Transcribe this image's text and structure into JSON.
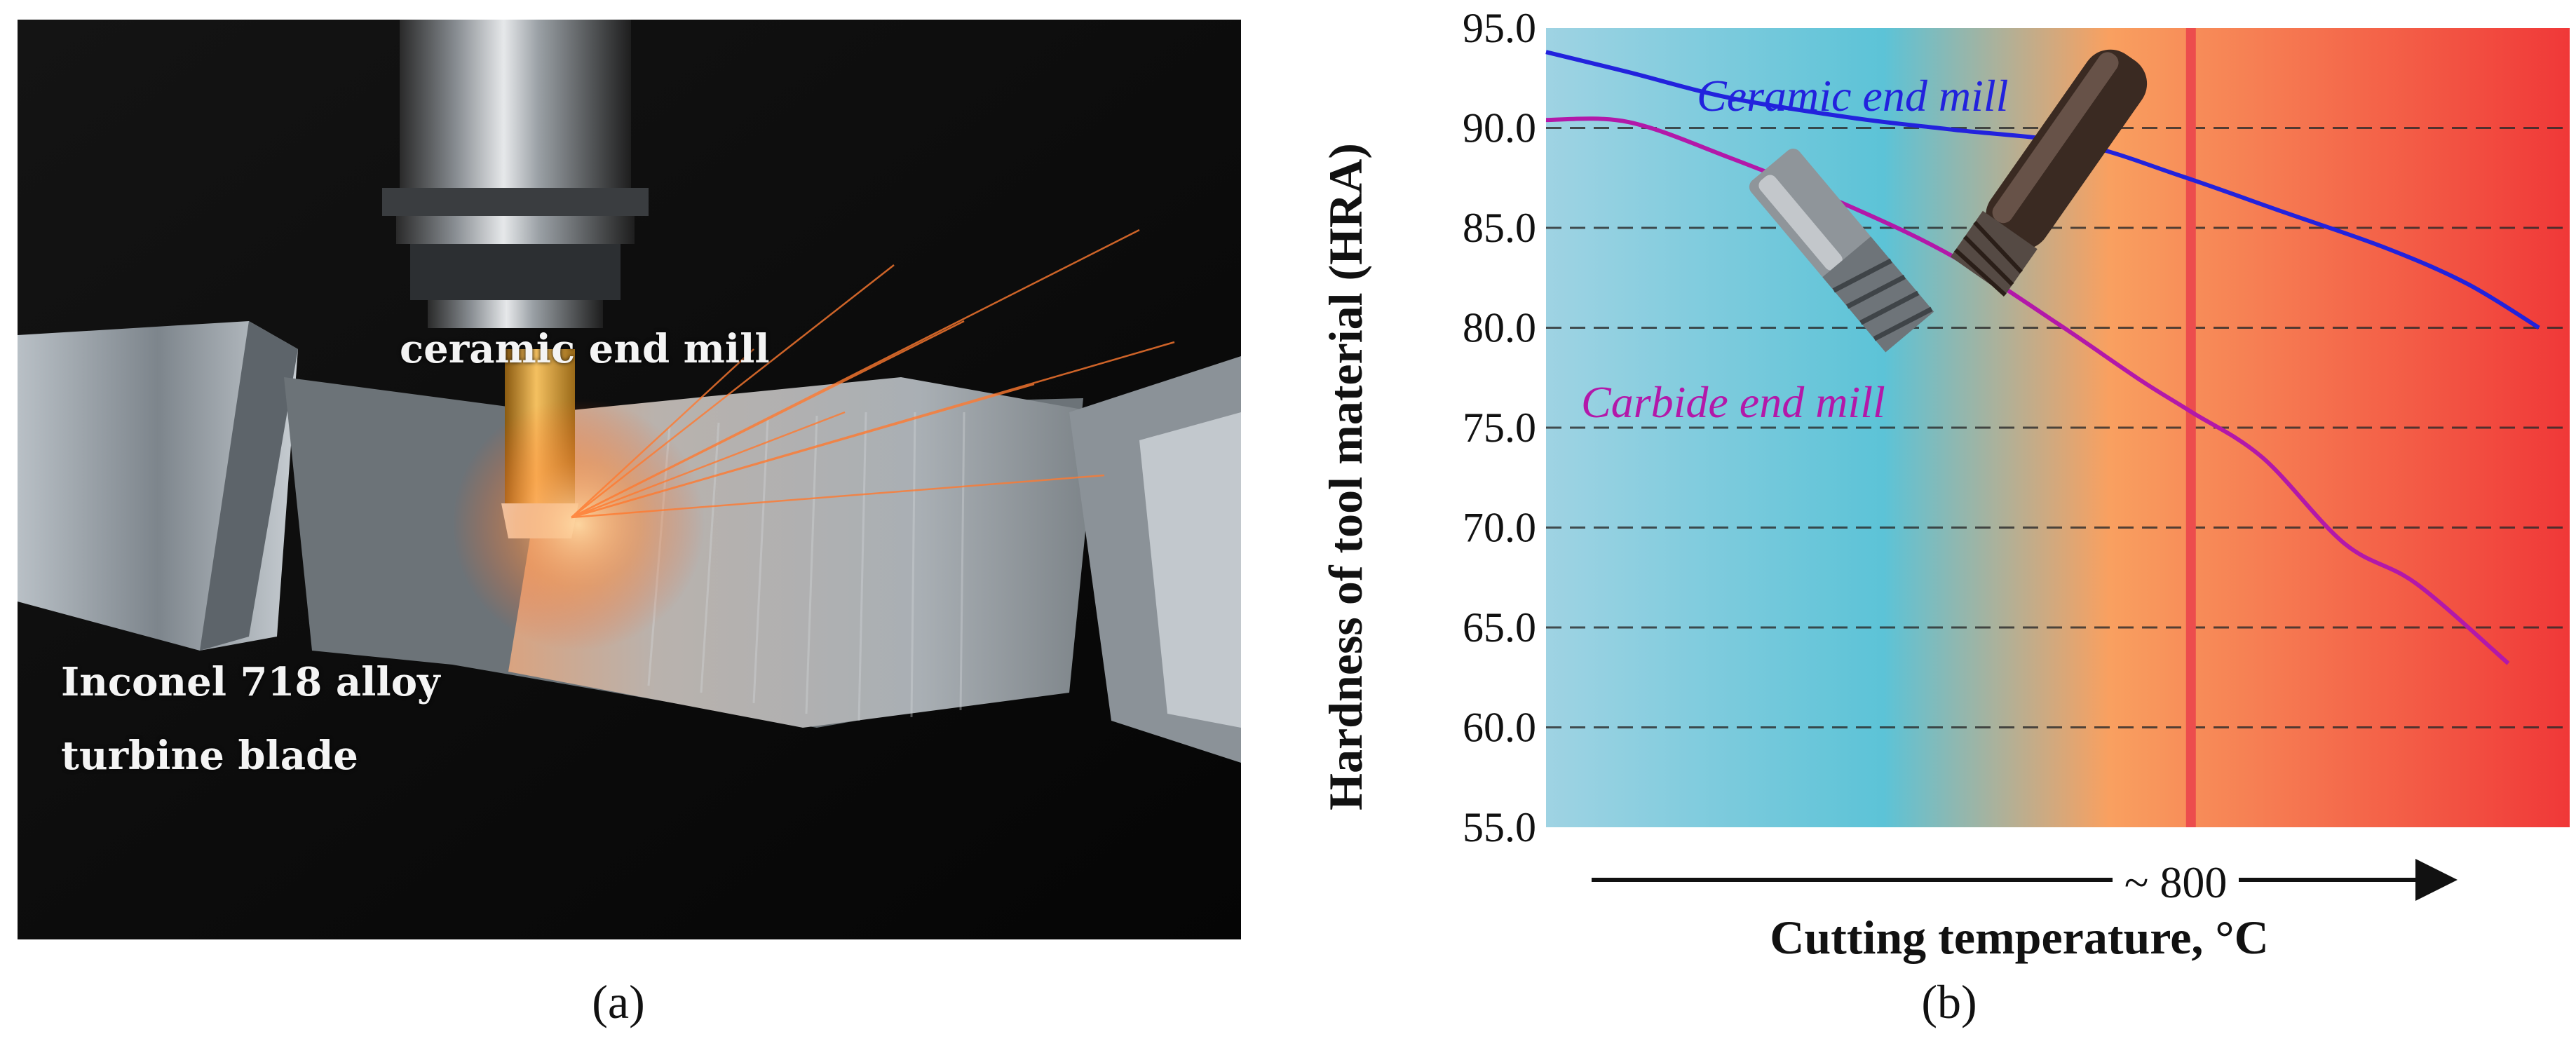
{
  "photo": {
    "label_tool": "ceramic end mill",
    "label_material_line1": "Inconel 718 alloy",
    "label_material_line2": "turbine blade"
  },
  "captions": {
    "a": "(a)",
    "b": "(b)"
  },
  "chart_data": {
    "type": "line",
    "title": "",
    "ylabel": "Hardness of tool material (HRA)",
    "xlabel": "Cutting temperature, °C",
    "ylim": [
      55.0,
      95.0
    ],
    "yticks": [
      "95.0",
      "90.0",
      "85.0",
      "80.0",
      "75.0",
      "70.0",
      "65.0",
      "60.0",
      "55.0"
    ],
    "xlim": [
      0,
      100
    ],
    "x_marker": {
      "x": 63,
      "label": "~ 800"
    },
    "grid": "horizontal dashed",
    "series": [
      {
        "name": "Ceramic end mill",
        "color": "#2222dd",
        "x": [
          0,
          8,
          18,
          30,
          40,
          52,
          62,
          72,
          82,
          90,
          97
        ],
        "y": [
          93.8,
          92.8,
          91.5,
          90.5,
          89.9,
          89.2,
          87.6,
          85.8,
          84.0,
          82.2,
          80.0
        ]
      },
      {
        "name": "Carbide end mill",
        "color": "#b318a9",
        "x": [
          0,
          8,
          18,
          30,
          40,
          50,
          58,
          63,
          70,
          78,
          85,
          94
        ],
        "y": [
          90.4,
          90.3,
          88.5,
          86.0,
          83.5,
          80.2,
          77.4,
          75.8,
          73.5,
          69.2,
          67.2,
          63.2
        ]
      }
    ],
    "legend": [
      "Ceramic end mill",
      "Carbide end mill"
    ],
    "colors": {
      "cool": "#9fd3e3",
      "cyan": "#5cc3d7",
      "orange": "#f9a060",
      "hot": "#f03838",
      "marker_line": "#ec4d4d"
    }
  }
}
